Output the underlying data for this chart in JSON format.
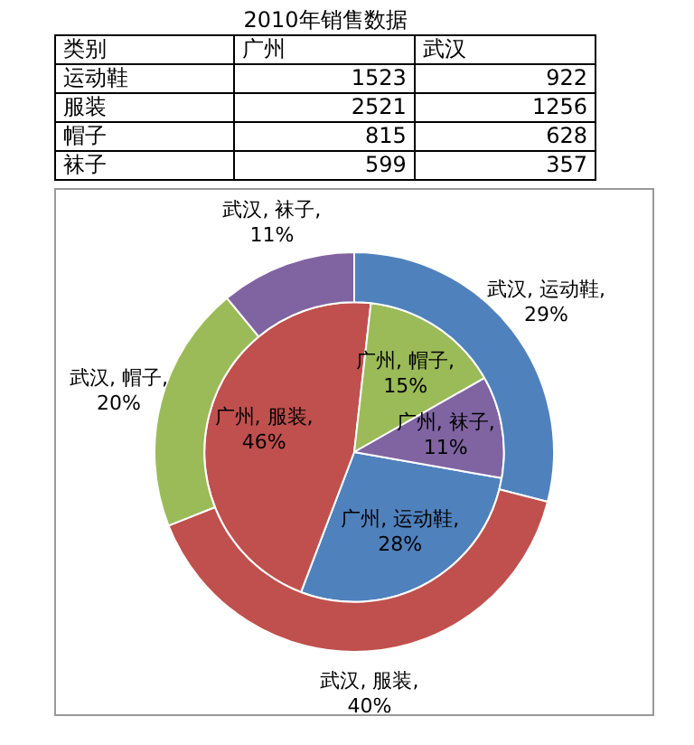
{
  "chart_data": [
    {
      "type": "other",
      "title": "2010年销售数据",
      "xlabel": "类别",
      "categories": [
        "运动鞋",
        "服装",
        "帽子",
        "袜子"
      ],
      "data_labels": true,
      "series": [
        {
          "name": "广州",
          "values": [
            1523,
            2521,
            815,
            599
          ]
        },
        {
          "name": "武汉",
          "values": [
            922,
            1256,
            628,
            357
          ]
        }
      ]
    },
    {
      "type": "pie",
      "legend": false,
      "series": [
        {
          "colors": [
            "#4f81bd",
            "#c0504d",
            "#9bbb59",
            "#8064a2"
          ],
          "values": [
            28,
            46,
            15,
            11
          ],
          "value_labels": [
            "广州, 运动鞋, 28%",
            "广州, 服装, 46%",
            "广州, 帽子, 15%",
            "广州, 袜子, 11%"
          ]
        },
        {
          "colors": [
            "#4f81bd",
            "#c0504d",
            "#9bbb59",
            "#8064a2"
          ],
          "values": [
            29,
            40,
            20,
            11
          ],
          "value_labels": [
            "武汉, 运动鞋, 29%",
            "武汉, 服装, 40%",
            "武汉, 帽子, 20%",
            "武汉, 袜子, 11%"
          ]
        }
      ]
    }
  ]
}
